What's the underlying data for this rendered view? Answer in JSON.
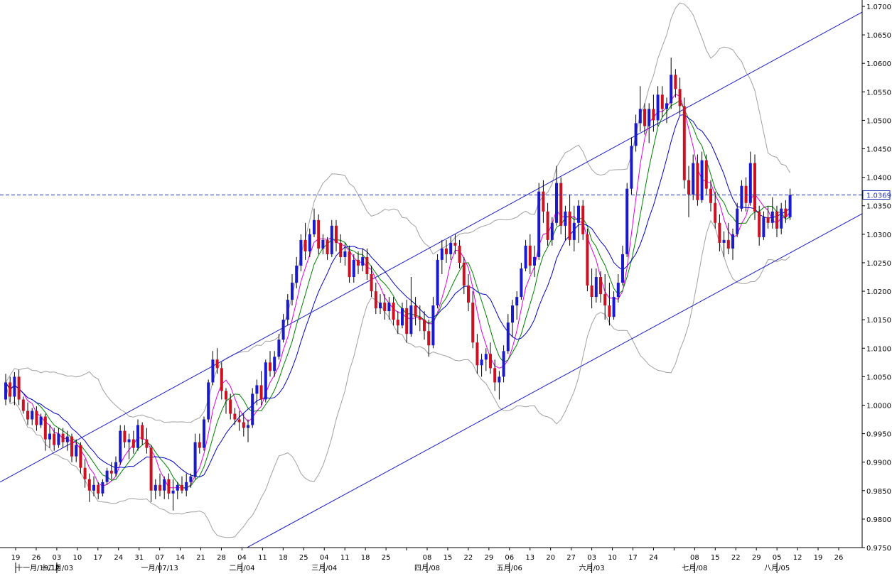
{
  "chart_data": {
    "type": "candlestick",
    "instrument_price_label": "1.0369",
    "current_price": 1.0369,
    "ylim": [
      0.975,
      1.07
    ],
    "y_ticks": [
      "1.0700",
      "1.0650",
      "1.0600",
      "1.0550",
      "1.0500",
      "1.0450",
      "1.0400",
      "1.0350",
      "1.0300",
      "1.0250",
      "1.0200",
      "1.0150",
      "1.0100",
      "1.0050",
      "1.0000",
      "0.9950",
      "0.9900",
      "0.9850",
      "0.9800",
      "0.9750"
    ],
    "x_day_labels": [
      "19",
      "26",
      "03",
      "10",
      "17",
      "24",
      "31",
      "07",
      "14",
      "21",
      "28",
      "04",
      "11",
      "18",
      "25",
      "04",
      "11",
      "18",
      "25",
      "",
      "08",
      "15",
      "22",
      "29",
      "06",
      "13",
      "20",
      "27",
      "03",
      "10",
      "17",
      "24",
      "",
      "08",
      "15",
      "22",
      "29",
      "05",
      "12",
      "19",
      "26"
    ],
    "x_month_labels": [
      "十一月/19/12",
      "十二月/03",
      "一月/07/13",
      "二月/04",
      "三月/04",
      "四月/08",
      "五月/06",
      "六月/03",
      "七月/08",
      "八月/05"
    ],
    "colors": {
      "bull": "#1a1acc",
      "bear": "#cc1122",
      "wick": "#000000",
      "ma_fast": "#e000e0",
      "ma_mid": "#008000",
      "ma_slow": "#0000cc",
      "bollinger": "#a0a0a0",
      "channel": "#1a1acc",
      "price_line": "#2030b0"
    },
    "channel": {
      "upper": {
        "start": [
          0,
          0.9865
        ],
        "end": [
          1213,
          1.069
        ]
      },
      "lower": {
        "start": [
          340,
          0.9745
        ],
        "end": [
          1213,
          1.0336
        ]
      }
    },
    "candles": [
      [
        1.001,
        1.0055,
        1.0,
        1.004
      ],
      [
        1.004,
        1.005,
        1.0005,
        1.0015
      ],
      [
        1.0015,
        1.0058,
        1.0,
        1.005
      ],
      [
        1.005,
        1.0062,
        1.0,
        1.001
      ],
      [
        1.001,
        1.0015,
        0.9985,
        0.999
      ],
      [
        0.999,
        1.0005,
        0.9965,
        0.9975
      ],
      [
        0.9975,
        0.9995,
        0.9965,
        0.999
      ],
      [
        0.999,
        0.9998,
        0.9955,
        0.9965
      ],
      [
        0.9965,
        0.9985,
        0.996,
        0.998
      ],
      [
        0.998,
        0.9985,
        0.992,
        0.994
      ],
      [
        0.994,
        0.9965,
        0.9925,
        0.995
      ],
      [
        0.995,
        0.996,
        0.992,
        0.993
      ],
      [
        0.993,
        0.996,
        0.9925,
        0.995
      ],
      [
        0.995,
        0.996,
        0.9925,
        0.9935
      ],
      [
        0.9935,
        0.9955,
        0.992,
        0.9945
      ],
      [
        0.9945,
        0.995,
        0.99,
        0.991
      ],
      [
        0.991,
        0.994,
        0.99,
        0.993
      ],
      [
        0.993,
        0.9935,
        0.988,
        0.989
      ],
      [
        0.989,
        0.9905,
        0.9855,
        0.987
      ],
      [
        0.987,
        0.988,
        0.983,
        0.985
      ],
      [
        0.985,
        0.9875,
        0.984,
        0.986
      ],
      [
        0.986,
        0.9865,
        0.9835,
        0.9845
      ],
      [
        0.9845,
        0.987,
        0.984,
        0.9865
      ],
      [
        0.9865,
        0.989,
        0.986,
        0.9885
      ],
      [
        0.9885,
        0.99,
        0.987,
        0.988
      ],
      [
        0.988,
        0.991,
        0.9875,
        0.99
      ],
      [
        0.99,
        0.9965,
        0.9895,
        0.9955
      ],
      [
        0.9955,
        0.9965,
        0.9925,
        0.9935
      ],
      [
        0.9935,
        0.995,
        0.9905,
        0.994
      ],
      [
        0.994,
        0.9955,
        0.9915,
        0.9925
      ],
      [
        0.9925,
        0.9975,
        0.992,
        0.9965
      ],
      [
        0.9965,
        0.997,
        0.993,
        0.994
      ],
      [
        0.994,
        0.996,
        0.9915,
        0.9925
      ],
      [
        0.9925,
        0.993,
        0.983,
        0.985
      ],
      [
        0.985,
        0.987,
        0.9835,
        0.986
      ],
      [
        0.986,
        0.988,
        0.984,
        0.985
      ],
      [
        0.985,
        0.9875,
        0.9835,
        0.987
      ],
      [
        0.987,
        0.988,
        0.9835,
        0.9845
      ],
      [
        0.9845,
        0.987,
        0.9815,
        0.985
      ],
      [
        0.985,
        0.9865,
        0.9835,
        0.986
      ],
      [
        0.986,
        0.9875,
        0.9845,
        0.985
      ],
      [
        0.985,
        0.988,
        0.984,
        0.9865
      ],
      [
        0.9865,
        0.988,
        0.9855,
        0.9875
      ],
      [
        0.9875,
        0.995,
        0.987,
        0.9935
      ],
      [
        0.9935,
        0.995,
        0.9915,
        0.9925
      ],
      [
        0.9925,
        0.998,
        0.992,
        0.9975
      ],
      [
        0.9975,
        1.0045,
        0.997,
        1.004
      ],
      [
        1.004,
        1.0095,
        1.0035,
        1.008
      ],
      [
        1.008,
        1.01,
        1.0055,
        1.0065
      ],
      [
        1.0065,
        1.0075,
        1.001,
        1.0025
      ],
      [
        1.0025,
        1.003,
        0.9985,
        1.001
      ],
      [
        1.001,
        1.002,
        0.9975,
        0.9985
      ],
      [
        0.9985,
        0.9995,
        0.9965,
        0.9975
      ],
      [
        0.9975,
        0.999,
        0.9955,
        0.997
      ],
      [
        0.997,
        0.9985,
        0.9945,
        0.996
      ],
      [
        0.996,
        0.9975,
        0.9935,
        0.9965
      ],
      [
        0.9965,
        1.003,
        0.996,
        1.002
      ],
      [
        1.002,
        1.0045,
        1.0,
        1.0035
      ],
      [
        1.0035,
        1.006,
        1.0,
        1.001
      ],
      [
        1.001,
        1.008,
        1.0005,
        1.0075
      ],
      [
        1.0075,
        1.0095,
        1.005,
        1.006
      ],
      [
        1.006,
        1.0095,
        1.005,
        1.0085
      ],
      [
        1.0085,
        1.0125,
        1.008,
        1.0115
      ],
      [
        1.0115,
        1.016,
        1.011,
        1.015
      ],
      [
        1.015,
        1.0195,
        1.014,
        1.0185
      ],
      [
        1.0185,
        1.023,
        1.0175,
        1.0215
      ],
      [
        1.0215,
        1.026,
        1.0205,
        1.0245
      ],
      [
        1.0245,
        1.03,
        1.0235,
        1.029
      ],
      [
        1.029,
        1.032,
        1.0255,
        1.027
      ],
      [
        1.027,
        1.031,
        1.026,
        1.03
      ],
      [
        1.03,
        1.0345,
        1.0295,
        1.0325
      ],
      [
        1.0325,
        1.0335,
        1.0265,
        1.0275
      ],
      [
        1.0275,
        1.03,
        1.0265,
        1.029
      ],
      [
        1.029,
        1.0295,
        1.0255,
        1.0265
      ],
      [
        1.0265,
        1.0325,
        1.026,
        1.0315
      ],
      [
        1.0315,
        1.0325,
        1.027,
        1.0285
      ],
      [
        1.0285,
        1.03,
        1.025,
        1.026
      ],
      [
        1.026,
        1.0285,
        1.0245,
        1.027
      ],
      [
        1.027,
        1.028,
        1.0215,
        1.0225
      ],
      [
        1.0225,
        1.0265,
        1.0215,
        1.0255
      ],
      [
        1.0255,
        1.027,
        1.023,
        1.0245
      ],
      [
        1.0245,
        1.0275,
        1.0235,
        1.026
      ],
      [
        1.026,
        1.0275,
        1.022,
        1.023
      ],
      [
        1.023,
        1.0245,
        1.019,
        1.02
      ],
      [
        1.02,
        1.0215,
        1.016,
        1.017
      ],
      [
        1.017,
        1.0195,
        1.016,
        1.018
      ],
      [
        1.018,
        1.0195,
        1.015,
        1.0165
      ],
      [
        1.0165,
        1.019,
        1.015,
        1.018
      ],
      [
        1.018,
        1.019,
        1.014,
        1.015
      ],
      [
        1.015,
        1.0165,
        1.0125,
        1.014
      ],
      [
        1.014,
        1.018,
        1.0135,
        1.017
      ],
      [
        1.017,
        1.0185,
        1.011,
        1.0125
      ],
      [
        1.0125,
        1.0225,
        1.012,
        1.0175
      ],
      [
        1.0175,
        1.019,
        1.014,
        1.0155
      ],
      [
        1.0155,
        1.0175,
        1.013,
        1.015
      ],
      [
        1.015,
        1.0165,
        1.0115,
        1.013
      ],
      [
        1.013,
        1.015,
        1.0085,
        1.0105
      ],
      [
        1.0105,
        1.019,
        1.01,
        1.0175
      ],
      [
        1.0175,
        1.0265,
        1.017,
        1.0255
      ],
      [
        1.0255,
        1.029,
        1.023,
        1.0275
      ],
      [
        1.0275,
        1.029,
        1.025,
        1.0265
      ],
      [
        1.0265,
        1.0295,
        1.0255,
        1.0285
      ],
      [
        1.0285,
        1.03,
        1.0265,
        1.028
      ],
      [
        1.028,
        1.029,
        1.024,
        1.025
      ],
      [
        1.025,
        1.026,
        1.0195,
        1.021
      ],
      [
        1.021,
        1.023,
        1.0165,
        1.018
      ],
      [
        1.018,
        1.02,
        1.01,
        1.011
      ],
      [
        1.011,
        1.0125,
        1.0055,
        1.007
      ],
      [
        1.007,
        1.009,
        1.005,
        1.008
      ],
      [
        1.008,
        1.01,
        1.006,
        1.009
      ],
      [
        1.009,
        1.011,
        1.0055,
        1.0065
      ],
      [
        1.0065,
        1.008,
        1.0025,
        1.004
      ],
      [
        1.004,
        1.006,
        1.001,
        1.005
      ],
      [
        1.005,
        1.0105,
        1.004,
        1.0095
      ],
      [
        1.0095,
        1.016,
        1.009,
        1.0145
      ],
      [
        1.0145,
        1.0185,
        1.012,
        1.0175
      ],
      [
        1.0175,
        1.02,
        1.015,
        1.019
      ],
      [
        1.019,
        1.025,
        1.0185,
        1.024
      ],
      [
        1.024,
        1.029,
        1.0235,
        1.028
      ],
      [
        1.028,
        1.03,
        1.023,
        1.0245
      ],
      [
        1.0245,
        1.028,
        1.0225,
        1.026
      ],
      [
        1.026,
        1.039,
        1.0255,
        1.0375
      ],
      [
        1.0375,
        1.0395,
        1.032,
        1.034
      ],
      [
        1.034,
        1.0355,
        1.028,
        1.029
      ],
      [
        1.029,
        1.033,
        1.028,
        1.032
      ],
      [
        1.032,
        1.042,
        1.0315,
        1.039
      ],
      [
        1.039,
        1.04,
        1.03,
        1.0315
      ],
      [
        1.0315,
        1.035,
        1.029,
        1.034
      ],
      [
        1.034,
        1.037,
        1.028,
        1.029
      ],
      [
        1.029,
        1.035,
        1.027,
        1.032
      ],
      [
        1.032,
        1.036,
        1.0285,
        1.035
      ],
      [
        1.035,
        1.036,
        1.029,
        1.03
      ],
      [
        1.03,
        1.031,
        1.02,
        1.021
      ],
      [
        1.021,
        1.024,
        1.017,
        1.019
      ],
      [
        1.019,
        1.024,
        1.018,
        1.0225
      ],
      [
        1.0225,
        1.0235,
        1.018,
        1.0195
      ],
      [
        1.0195,
        1.023,
        1.015,
        1.0175
      ],
      [
        1.0175,
        1.0215,
        1.014,
        1.0155
      ],
      [
        1.0155,
        1.02,
        1.015,
        1.019
      ],
      [
        1.019,
        1.023,
        1.018,
        1.0215
      ],
      [
        1.0215,
        1.028,
        1.021,
        1.0265
      ],
      [
        1.0265,
        1.039,
        1.026,
        1.038
      ],
      [
        1.038,
        1.047,
        1.037,
        1.0455
      ],
      [
        1.0455,
        1.051,
        1.0445,
        1.0495
      ],
      [
        1.0495,
        1.056,
        1.048,
        1.052
      ],
      [
        1.052,
        1.053,
        1.0475,
        1.049
      ],
      [
        1.049,
        1.053,
        1.046,
        1.052
      ],
      [
        1.052,
        1.0545,
        1.048,
        1.05
      ],
      [
        1.05,
        1.056,
        1.049,
        1.0545
      ],
      [
        1.0545,
        1.056,
        1.0505,
        1.052
      ],
      [
        1.052,
        1.054,
        1.0495,
        1.053
      ],
      [
        1.053,
        1.061,
        1.052,
        1.058
      ],
      [
        1.058,
        1.059,
        1.054,
        1.0555
      ],
      [
        1.0555,
        1.0575,
        1.051,
        1.0525
      ],
      [
        1.0525,
        1.054,
        1.038,
        1.0395
      ],
      [
        1.0395,
        1.042,
        1.033,
        1.037
      ],
      [
        1.037,
        1.044,
        1.036,
        1.0425
      ],
      [
        1.0425,
        1.044,
        1.035,
        1.036
      ],
      [
        1.036,
        1.0445,
        1.0355,
        1.043
      ],
      [
        1.043,
        1.044,
        1.037,
        1.038
      ],
      [
        1.038,
        1.0395,
        1.034,
        1.0355
      ],
      [
        1.0355,
        1.0375,
        1.031,
        1.032
      ],
      [
        1.032,
        1.0335,
        1.027,
        1.0285
      ],
      [
        1.0285,
        1.0305,
        1.026,
        1.029
      ],
      [
        1.029,
        1.032,
        1.0265,
        1.0275
      ],
      [
        1.0275,
        1.031,
        1.0255,
        1.03
      ],
      [
        1.03,
        1.0355,
        1.0295,
        1.0345
      ],
      [
        1.0345,
        1.0395,
        1.034,
        1.0385
      ],
      [
        1.0385,
        1.04,
        1.034,
        1.0355
      ],
      [
        1.0355,
        1.0445,
        1.035,
        1.0425
      ],
      [
        1.0425,
        1.044,
        1.0325,
        1.034
      ],
      [
        1.034,
        1.035,
        1.028,
        1.0295
      ],
      [
        1.0295,
        1.034,
        1.029,
        1.033
      ],
      [
        1.033,
        1.035,
        1.031,
        1.032
      ],
      [
        1.032,
        1.0365,
        1.031,
        1.034
      ],
      [
        1.034,
        1.035,
        1.0295,
        1.031
      ],
      [
        1.031,
        1.0355,
        1.03,
        1.0345
      ],
      [
        1.0345,
        1.036,
        1.032,
        1.033
      ],
      [
        1.033,
        1.038,
        1.0325,
        1.0369
      ]
    ]
  }
}
